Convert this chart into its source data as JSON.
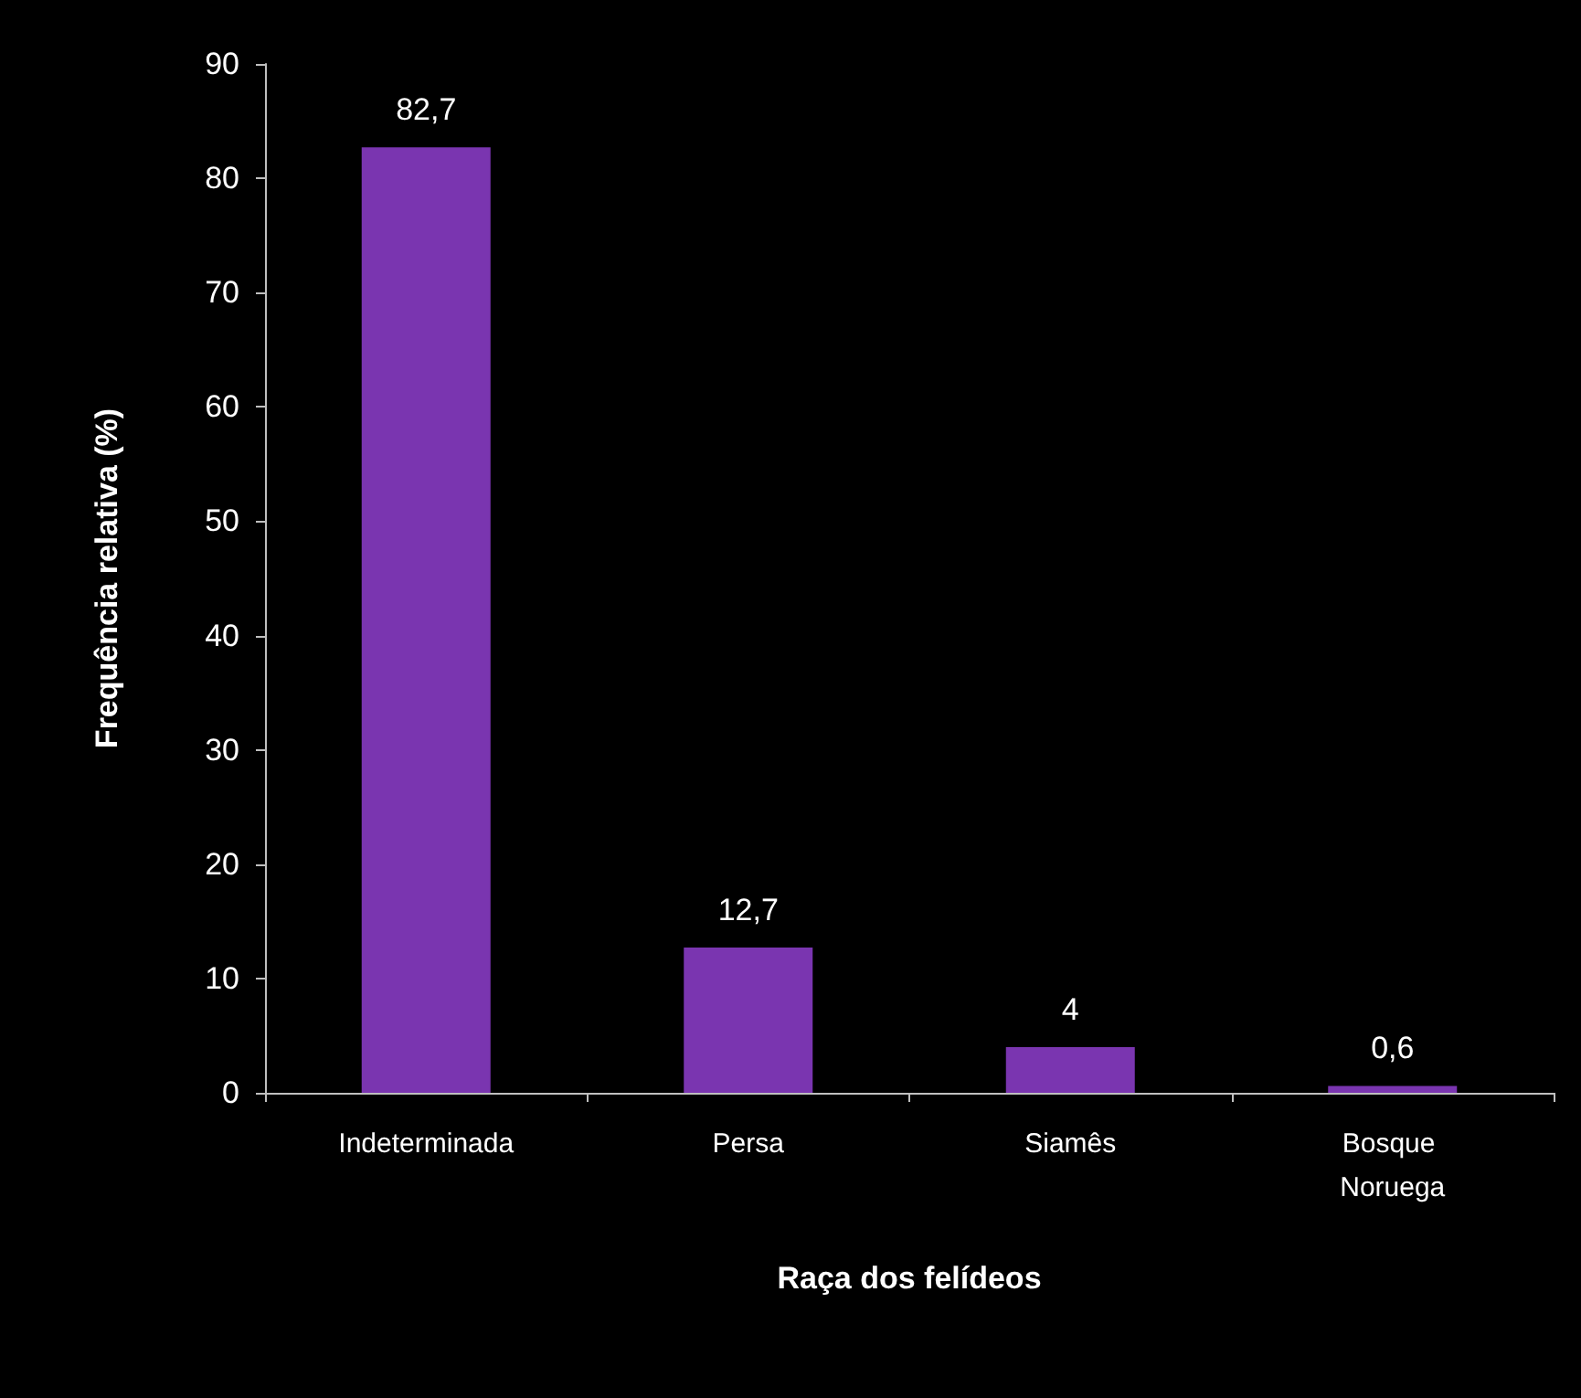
{
  "chart_data": {
    "type": "bar",
    "xlabel": "Raça dos felídeos",
    "ylabel": "Frequência relativa (%)",
    "categories": [
      "Indeterminada",
      "Persa",
      "Siamês",
      "Bosque Noruega"
    ],
    "values": [
      82.7,
      12.7,
      4,
      0.6
    ],
    "value_labels": [
      "82,7",
      "12,7",
      "4",
      "0,6"
    ],
    "color": "#7a35b0",
    "ylim": [
      0,
      90
    ],
    "yticks": [
      0,
      10,
      20,
      30,
      40,
      50,
      60,
      70,
      80,
      90
    ],
    "grid": false
  }
}
